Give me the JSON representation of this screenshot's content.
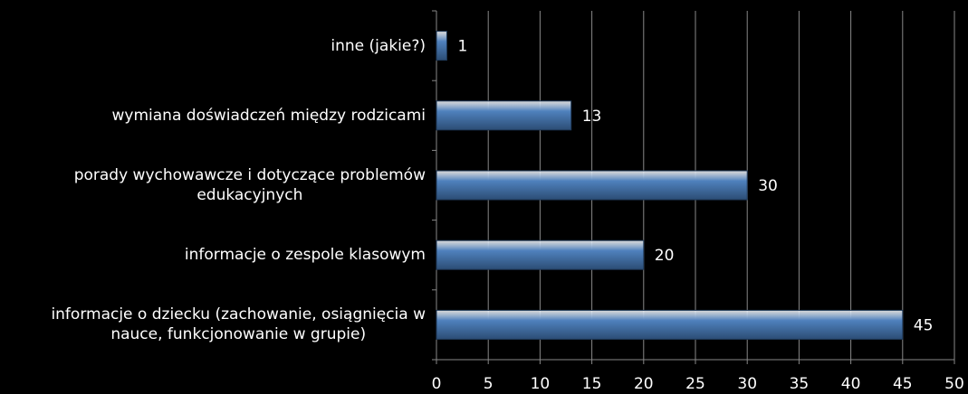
{
  "chart_data": {
    "type": "bar",
    "orientation": "horizontal",
    "categories": [
      "inne (jakie?)",
      "wymiana doświadczeń między rodzicami",
      "porady wychowawcze i dotyczące problemów\nedukacyjnych",
      "informacje o zespole klasowym",
      "informacje o dziecku (zachowanie, osiągnięcia w\nnauce, funkcjonowanie w grupie)"
    ],
    "values": [
      1,
      13,
      30,
      20,
      45
    ],
    "color": "#4f81bd",
    "xlim": [
      0,
      50
    ],
    "xticks": [
      0,
      5,
      10,
      15,
      20,
      25,
      30,
      35,
      40,
      45,
      50
    ],
    "grid": true
  }
}
